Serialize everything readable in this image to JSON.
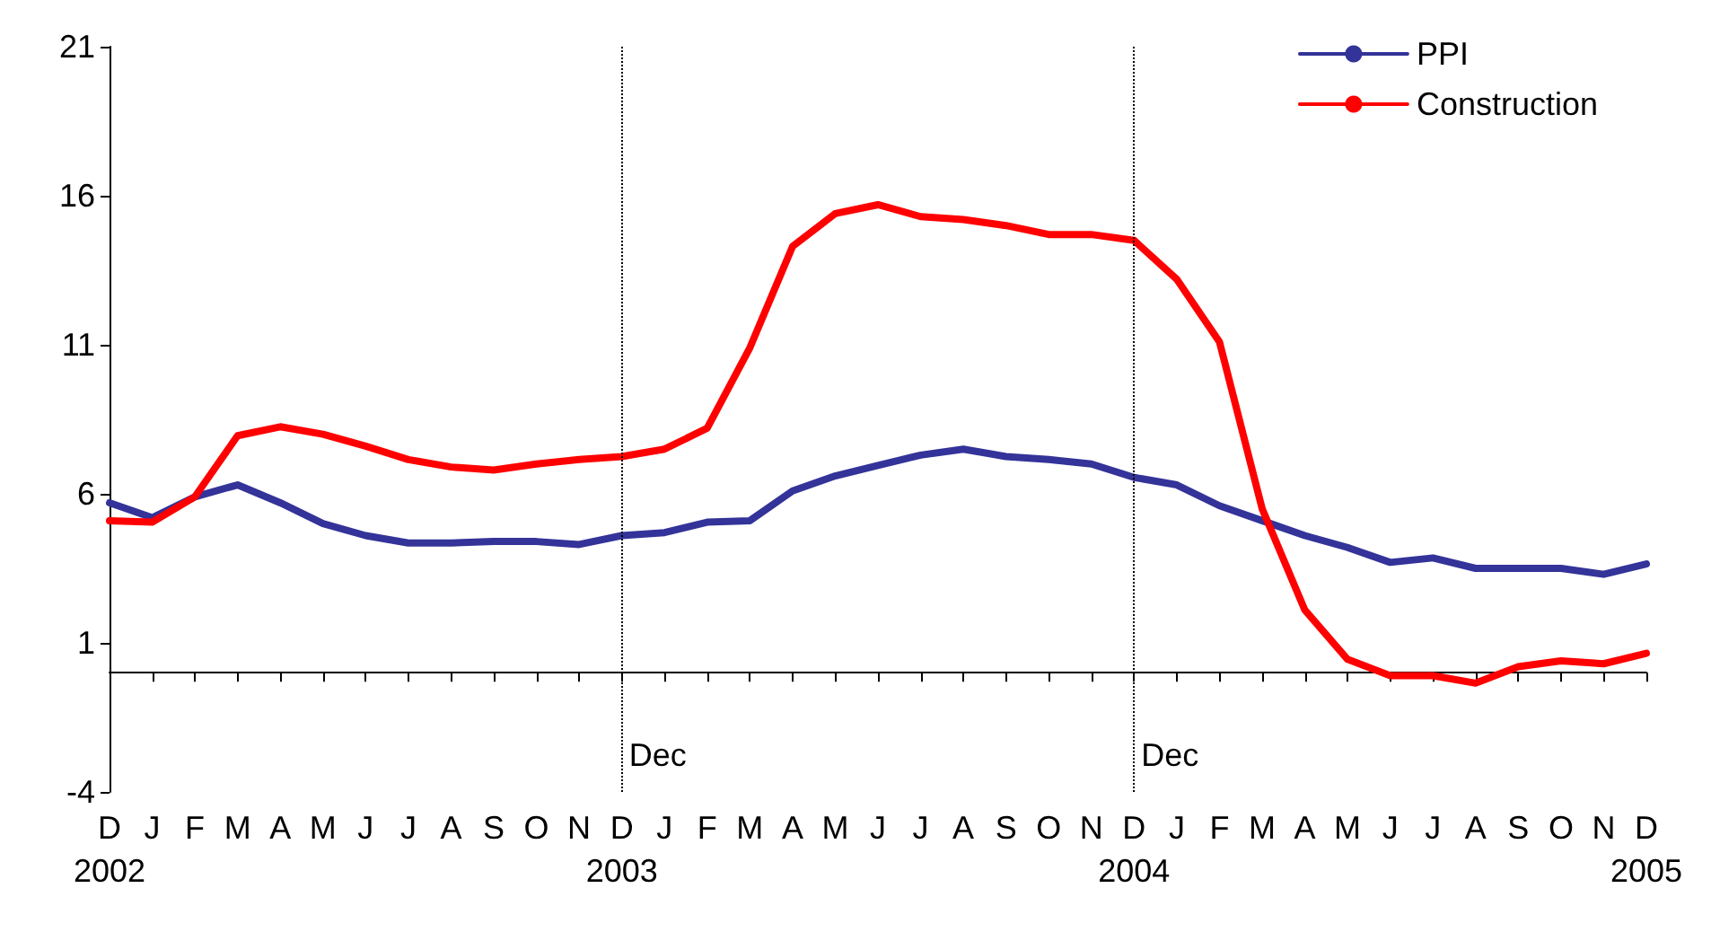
{
  "chart_data": {
    "type": "line",
    "categories": [
      "D\n2002",
      "J",
      "F",
      "M",
      "A",
      "M",
      "J",
      "J",
      "A",
      "S",
      "O",
      "N",
      "D\n2003",
      "J",
      "F",
      "M",
      "A",
      "M",
      "J",
      "J",
      "A",
      "S",
      "O",
      "N",
      "D\n2004",
      "J",
      "F",
      "M",
      "A",
      "M",
      "J",
      "J",
      "A",
      "S",
      "O",
      "N",
      "D\n2005"
    ],
    "series": [
      {
        "name": "PPI",
        "color": "#333399",
        "values": [
          5.7,
          5.2,
          5.9,
          6.3,
          5.7,
          5.0,
          4.6,
          4.35,
          4.35,
          4.4,
          4.4,
          4.3,
          4.6,
          4.7,
          5.05,
          5.1,
          6.1,
          6.6,
          6.95,
          7.3,
          7.5,
          7.25,
          7.15,
          7.0,
          6.55,
          6.3,
          5.6,
          5.1,
          4.6,
          4.2,
          3.7,
          3.85,
          3.5,
          3.5,
          3.5,
          3.3,
          3.65
        ]
      },
      {
        "name": "Construction",
        "color": "#ff0000",
        "values": [
          5.1,
          5.05,
          5.9,
          7.95,
          8.25,
          8.0,
          7.6,
          7.15,
          6.9,
          6.8,
          7.0,
          7.15,
          7.25,
          7.5,
          8.2,
          10.9,
          14.3,
          15.4,
          15.7,
          15.3,
          15.2,
          15.0,
          14.7,
          14.7,
          14.5,
          13.2,
          11.1,
          5.5,
          2.1,
          0.45,
          -0.1,
          -0.1,
          -0.35,
          0.2,
          0.4,
          0.3,
          0.65
        ]
      }
    ],
    "ylim": [
      -4,
      21
    ],
    "yticks": [
      -4,
      1,
      6,
      11,
      16,
      21
    ],
    "ref_lines": [
      {
        "axis": "x",
        "value": "D\n2003",
        "label": "Dec",
        "color": "#000000",
        "line_style": "dotted"
      },
      {
        "axis": "x",
        "value": "D\n2004",
        "label": "Dec",
        "color": "#000000",
        "line_style": "dotted"
      }
    ],
    "legend": "top right",
    "grid": false,
    "marker": "none",
    "line_style": "solid"
  }
}
